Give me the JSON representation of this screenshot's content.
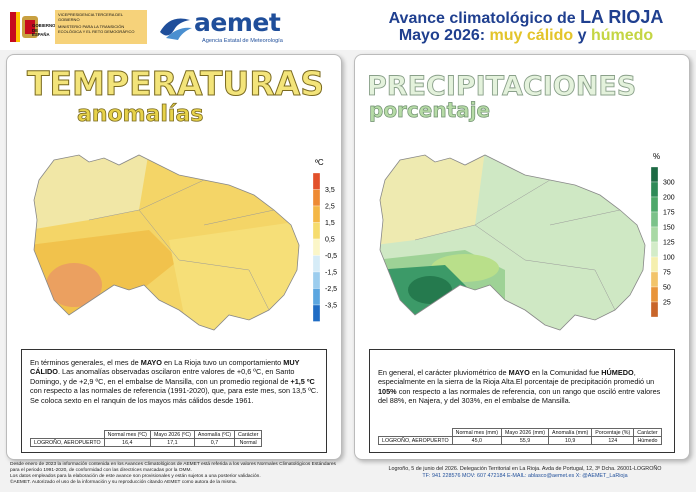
{
  "header": {
    "gov": {
      "vice": "VICEPRESIDENCIA TERCERA DEL GOBIERNO",
      "country": "GOBIERNO DE ESPAÑA",
      "ministry": "MINISTERIO PARA LA TRANSICIÓN ECOLÓGICA Y EL RETO DEMOGRÁFICO"
    },
    "agency": {
      "name": "aemet",
      "full": "Agencia Estatal de Meteorología"
    },
    "title": {
      "line1": "Avance climatológico de",
      "region": "LA RIOJA",
      "month": "Mayo 2026:",
      "temp_char": "muy cálido",
      "and": "y",
      "prec_char": "húmedo"
    }
  },
  "temperature": {
    "title": "TEMPERATURAS",
    "subtitle": "anomalías",
    "legend": {
      "unit": "ºC",
      "colors": [
        "#e2502a",
        "#ee8a34",
        "#f4b746",
        "#f6dc6e",
        "#fbf6c8",
        "#d6ecf7",
        "#9ccdee",
        "#5ba6e0",
        "#1f6cc4"
      ],
      "labels": [
        "3,5",
        "2,5",
        "1,5",
        "0,5",
        "-0,5",
        "-1,5",
        "-2,5",
        "-3,5"
      ]
    },
    "paragraph": [
      {
        "text": "En términos generales, el mes de "
      },
      {
        "text": "MAYO",
        "bold": true
      },
      {
        "text": " en La Rioja tuvo un comportamiento "
      },
      {
        "text": "MUY CÁLIDO",
        "bold": true
      },
      {
        "text": ". Las anomalías observadas oscilaron entre valores de +0,6 ºC, en Santo Domingo, y de +2,9 ºC, en el embalse de Mansilla, con un promedio regional de "
      },
      {
        "text": "+1,5 ºC",
        "bold": true
      },
      {
        "text": " con respecto a las normales de referencia (1991-2020), que, para este mes, son 13,5 ºC. Se coloca sexto en el ranquin de los mayos más cálidos desde 1961."
      }
    ],
    "table": {
      "headers": [
        "Normal mes (ºC)",
        "Mayo 2026 (ºC)",
        "Anomalía (ºC)",
        "Carácter"
      ],
      "rows": [
        [
          "LOGROÑO, AEROPUERTO",
          "16,4",
          "17,1",
          "0,7",
          "Normal"
        ]
      ]
    }
  },
  "precipitation": {
    "title": "PRECIPITACIONES",
    "subtitle": "porcentaje",
    "legend": {
      "unit": "%",
      "colors": [
        "#1d6a44",
        "#2f8a58",
        "#4ea86a",
        "#7cc28a",
        "#a9d9a5",
        "#d3ecc8",
        "#f5efae",
        "#f2c46a",
        "#e8943a",
        "#c8652a"
      ],
      "labels": [
        "300",
        "200",
        "175",
        "150",
        "125",
        "100",
        "75",
        "50",
        "25"
      ]
    },
    "paragraph": [
      {
        "text": "En general, el carácter pluviométrico de "
      },
      {
        "text": "MAYO",
        "bold": true
      },
      {
        "text": " en la Comunidad fue "
      },
      {
        "text": "HÚMEDO",
        "bold": true
      },
      {
        "text": ", especialmente en la sierra de la Rioja Alta.El porcentaje de precipitación promedió un "
      },
      {
        "text": "105%",
        "bold": true
      },
      {
        "text": " con respecto a las normales de referencia, con un rango que osciló entre valores del 88%, en Najera, y del 303%, en el embalse de Mansilla."
      }
    ],
    "table": {
      "headers": [
        "Normal mes (mm)",
        "Mayo 2026 (mm)",
        "Anomalía (mm)",
        "Porcentaje (%)",
        "Carácter"
      ],
      "rows": [
        [
          "LOGROÑO, AEROPUERTO",
          "45,0",
          "55,9",
          "10,9",
          "124",
          "Húmedo"
        ]
      ]
    }
  },
  "footer": {
    "notes": [
      "Desde enero de 2023 la información contenida en los Avances Climatológicos de AEMET está referida a los valores Normales Climatológicos Estándares para el periodo 1991-2020, de conformidad con las directrices marcadas por la OMM.",
      "Los datos empleados para la elaboración de este avance son provisionales y están sujetos a una posterior validación.",
      "©AEMET. Autorizado el uso de la información y su reproducción citando AEMET como autora de la misma."
    ],
    "address": "Logroño, 5 de junio del 2026. Delegación Territorial en La Rioja. Avda de Portugal, 12, 3º Dcha. 26001-LOGROÑO",
    "contact": "TF: 941 228576  MOV: 607 472184  E-MAIL: ablasco@aemet.es  X: @AEMET_LaRioja"
  }
}
